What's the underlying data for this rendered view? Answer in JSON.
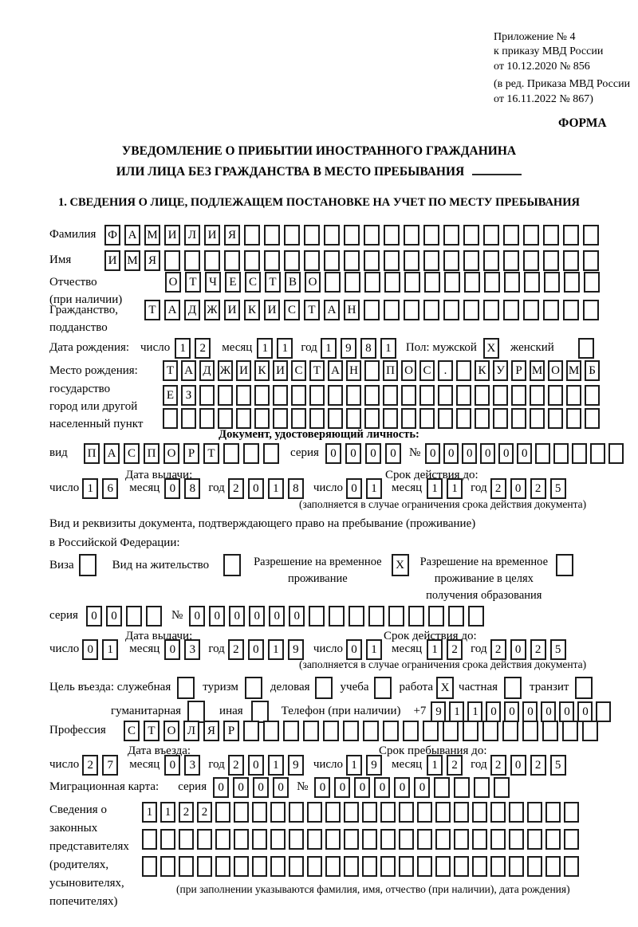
{
  "header": {
    "line1": "Приложение № 4",
    "line2": "к приказу МВД России",
    "line3": "от 10.12.2020 № 856",
    "line4": "(в ред. Приказа МВД России",
    "line5": "от 16.11.2022 № 867)",
    "forma": "ФОРМА"
  },
  "title": {
    "line1": "УВЕДОМЛЕНИЕ О ПРИБЫТИИ ИНОСТРАННОГО ГРАЖДАНИНА",
    "line2": "ИЛИ ЛИЦА БЕЗ ГРАЖДАНСТВА В МЕСТО ПРЕБЫВАНИЯ"
  },
  "section1": {
    "heading": "1. СВЕДЕНИЯ О ЛИЦЕ, ПОДЛЕЖАЩЕМ ПОСТАНОВКЕ НА УЧЕТ ПО МЕСТУ ПРЕБЫВАНИЯ"
  },
  "labels": {
    "surname": "Фамилия",
    "given_name": "Имя",
    "patronymic": "Отчество",
    "patronymic_note": "(при наличии)",
    "citizenship1": "Гражданство,",
    "citizenship2": "подданство",
    "birth_date": "Дата рождения:",
    "day": "число",
    "month": "месяц",
    "year": "год",
    "sex_male": "Пол: мужской",
    "sex_female": "женский",
    "birthplace": "Место рождения:",
    "birthplace_state": "государство",
    "birthplace_city1": "город или другой",
    "birthplace_city2": "населенный пункт",
    "identity_doc_heading": "Документ, удостоверяющий личность:",
    "doc_kind": "вид",
    "series": "серия",
    "number": "№",
    "issue_date": "Дата выдачи:",
    "valid_until": "Срок действия до:",
    "validity_note": "(заполняется в случае ограничения срока действия документа)",
    "residence_doc1": "Вид и реквизиты документа, подтверждающего право на пребывание (проживание)",
    "residence_doc2": "в Российской Федерации:",
    "visa": "Виза",
    "residence_permit": "Вид на жительство",
    "temp_residence1": "Разрешение на временное",
    "temp_residence2": "проживание",
    "temp_edu1": "Разрешение на временное",
    "temp_edu2": "проживание в целях",
    "temp_edu3": "получения образования",
    "purpose_official": "Цель въезда: служебная",
    "purpose_tourism": "туризм",
    "purpose_business": "деловая",
    "purpose_study": "учеба",
    "purpose_work": "работа",
    "purpose_private": "частная",
    "purpose_transit": "транзит",
    "purpose_humanitarian": "гуманитарная",
    "purpose_other": "иная",
    "phone": "Телефон (при наличии)",
    "phone_prefix": "+7",
    "profession": "Профессия",
    "entry_date": "Дата въезда:",
    "stay_until": "Срок пребывания до:",
    "migration_card": "Миграционная карта:",
    "representatives1": "Сведения о",
    "representatives2": "законных",
    "representatives3": "представителях",
    "representatives4": "(родителях,",
    "representatives5": "усыновителях,",
    "representatives6": "попечителях)",
    "representatives_note": "(при заполнении указываются фамилия, имя, отчество (при наличии), дата рождения)"
  },
  "cells": {
    "surname": {
      "count": 25,
      "value": "ФАМИЛИЯ"
    },
    "given_name": {
      "count": 25,
      "value": "ИМЯ"
    },
    "patronymic": {
      "count": 22,
      "value": "ОТЧЕСТВО"
    },
    "citizenship": {
      "count": 23,
      "value": "ТАДЖИКИСТАН"
    },
    "birth_day": {
      "count": 2,
      "value": "12"
    },
    "birth_month": {
      "count": 2,
      "value": "11"
    },
    "birth_year": {
      "count": 4,
      "value": "1981"
    },
    "sex_male_box": {
      "count": 1,
      "value": "X"
    },
    "sex_female_box": {
      "count": 1,
      "value": ""
    },
    "birthplace_line1": {
      "count": 24,
      "value": "ТАДЖИКИСТАН ПОС. КУРМОМБ"
    },
    "birthplace_line2": {
      "count": 24,
      "value": "ЕЗ"
    },
    "birthplace_line3": {
      "count": 24,
      "value": ""
    },
    "doc_kind": {
      "count": 10,
      "value": "ПАСПОРТ"
    },
    "doc_series": {
      "count": 4,
      "value": "0000"
    },
    "doc_number": {
      "count": 11,
      "value": "000000"
    },
    "doc_issue_day": {
      "count": 2,
      "value": "16"
    },
    "doc_issue_month": {
      "count": 2,
      "value": "08"
    },
    "doc_issue_year": {
      "count": 4,
      "value": "2018"
    },
    "doc_valid_day": {
      "count": 2,
      "value": "01"
    },
    "doc_valid_month": {
      "count": 2,
      "value": "11"
    },
    "doc_valid_year": {
      "count": 4,
      "value": "2025"
    },
    "visa_box": {
      "count": 1,
      "value": ""
    },
    "residence_permit_box": {
      "count": 1,
      "value": ""
    },
    "temp_residence_box": {
      "count": 1,
      "value": "X"
    },
    "temp_residence_edu_box": {
      "count": 1,
      "value": ""
    },
    "permit_series": {
      "count": 4,
      "value": "00"
    },
    "permit_number": {
      "count": 15,
      "value": "000000"
    },
    "permit_issue_day": {
      "count": 2,
      "value": "01"
    },
    "permit_issue_month": {
      "count": 2,
      "value": "03"
    },
    "permit_issue_year": {
      "count": 4,
      "value": "2019"
    },
    "permit_valid_day": {
      "count": 2,
      "value": "01"
    },
    "permit_valid_month": {
      "count": 2,
      "value": "12"
    },
    "permit_valid_year": {
      "count": 4,
      "value": "2025"
    },
    "purpose_official_box": {
      "count": 1,
      "value": ""
    },
    "purpose_tourism_box": {
      "count": 1,
      "value": ""
    },
    "purpose_business_box": {
      "count": 1,
      "value": ""
    },
    "purpose_study_box": {
      "count": 1,
      "value": ""
    },
    "purpose_work_box": {
      "count": 1,
      "value": "X"
    },
    "purpose_private_box": {
      "count": 1,
      "value": ""
    },
    "purpose_transit_box": {
      "count": 1,
      "value": ""
    },
    "purpose_humanitarian_box": {
      "count": 1,
      "value": ""
    },
    "purpose_other_box": {
      "count": 1,
      "value": ""
    },
    "phone": {
      "count": 10,
      "value": "911000000"
    },
    "profession": {
      "count": 24,
      "value": "СТОЛЯР"
    },
    "entry_day": {
      "count": 2,
      "value": "27"
    },
    "entry_month": {
      "count": 2,
      "value": "03"
    },
    "entry_year": {
      "count": 4,
      "value": "2019"
    },
    "stay_day": {
      "count": 2,
      "value": "19"
    },
    "stay_month": {
      "count": 2,
      "value": "12"
    },
    "stay_year": {
      "count": 4,
      "value": "2025"
    },
    "migcard_series": {
      "count": 4,
      "value": "0000"
    },
    "migcard_number": {
      "count": 10,
      "value": "000000"
    },
    "representatives_line1": {
      "count": 24,
      "value": "1122"
    },
    "representatives_line2": {
      "count": 24,
      "value": ""
    },
    "representatives_line3": {
      "count": 24,
      "value": ""
    }
  }
}
